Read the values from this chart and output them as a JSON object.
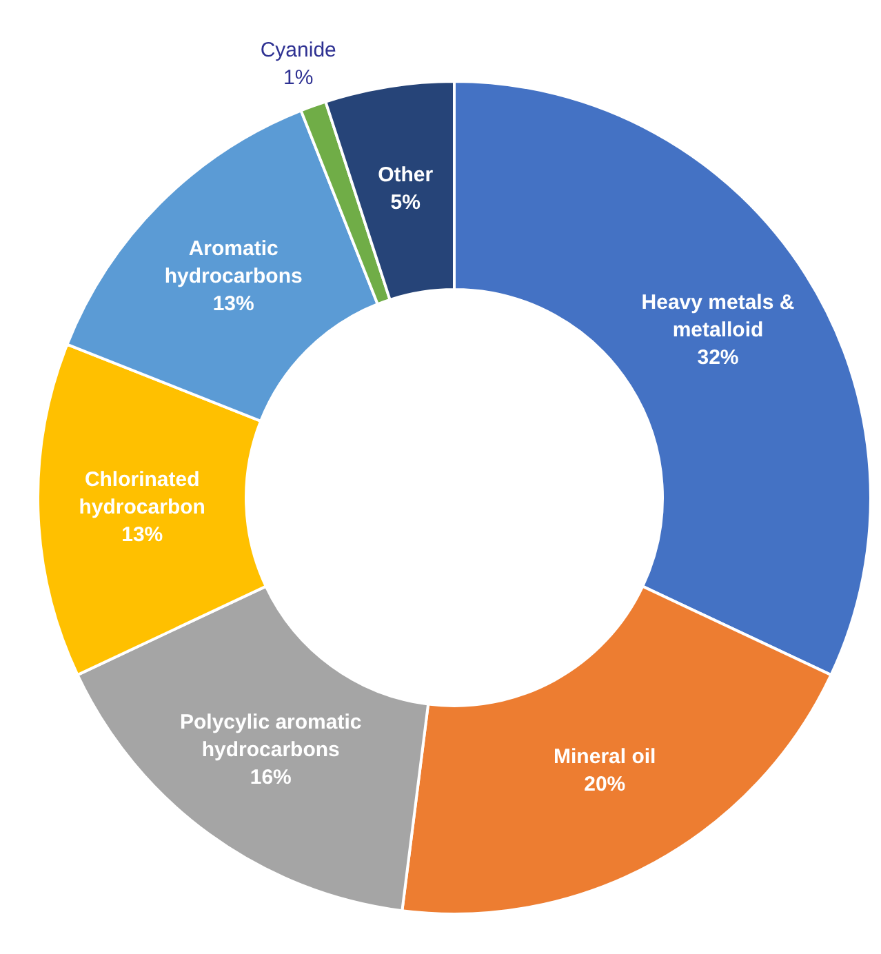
{
  "chart_data": {
    "type": "donut",
    "categories": [
      "Heavy metals & metalloid",
      "Mineral oil",
      "Polycylic aromatic hydrocarbons",
      "Chlorinated hydrocarbon",
      "Aromatic hydrocarbons",
      "Cyanide",
      "Other"
    ],
    "values": [
      32,
      20,
      16,
      13,
      13,
      1,
      5
    ],
    "colors": [
      "#4472c4",
      "#ed7d31",
      "#a5a5a5",
      "#ffc000",
      "#5b9bd5",
      "#70ad47",
      "#264478"
    ],
    "value_labels": [
      "32%",
      "20%",
      "16%",
      "13%",
      "13%",
      "1%",
      "5%"
    ],
    "legend": false
  }
}
